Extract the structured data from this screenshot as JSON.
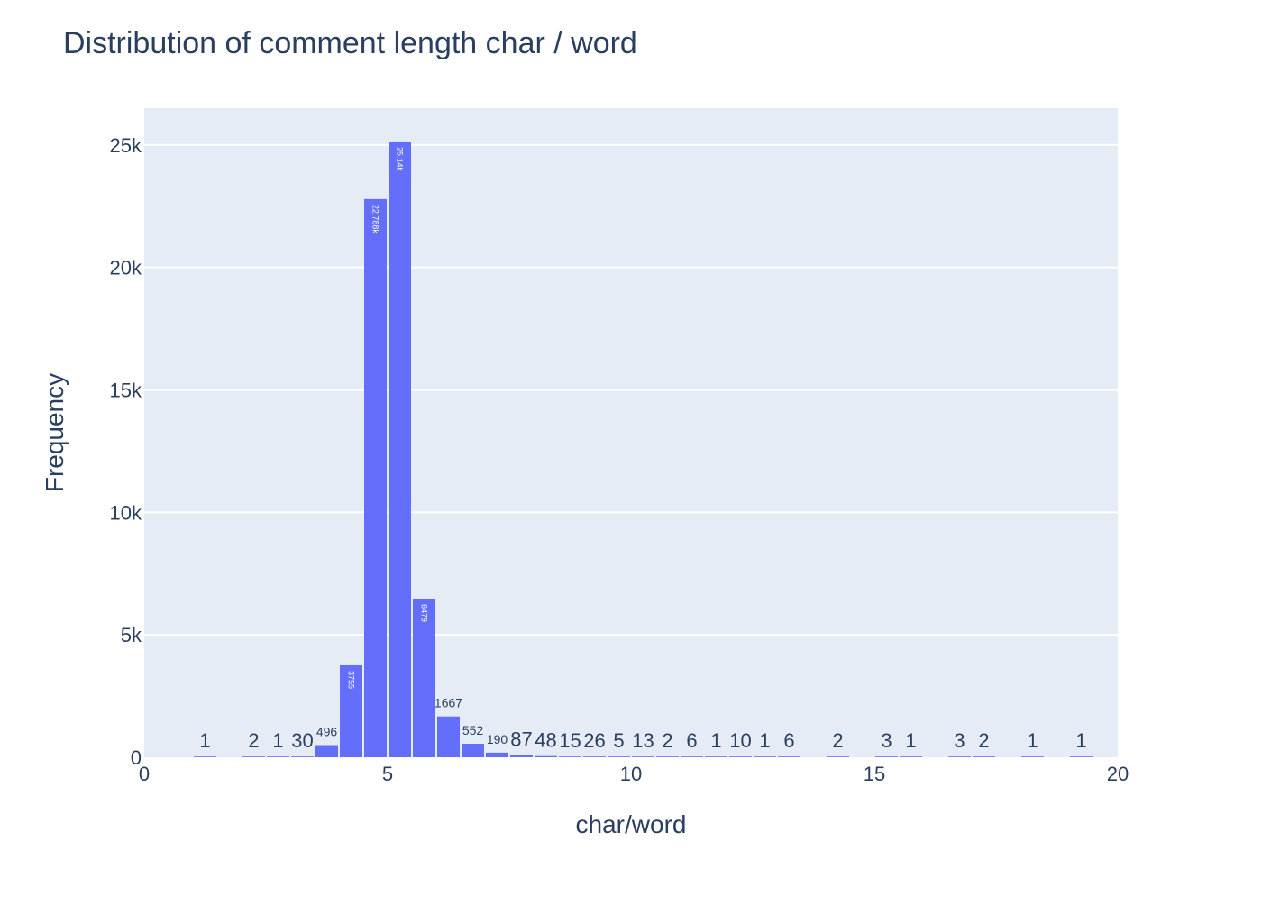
{
  "chart_data": {
    "type": "bar",
    "title": "Distribution of comment length char / word",
    "xlabel": "char/word",
    "ylabel": "Frequency",
    "xlim": [
      0,
      20
    ],
    "ylim": [
      0,
      26500
    ],
    "x_ticks": [
      {
        "value": 0,
        "label": "0"
      },
      {
        "value": 5,
        "label": "5"
      },
      {
        "value": 10,
        "label": "10"
      },
      {
        "value": 15,
        "label": "15"
      },
      {
        "value": 20,
        "label": "20"
      }
    ],
    "y_ticks": [
      {
        "value": 0,
        "label": "0"
      },
      {
        "value": 5000,
        "label": "5k"
      },
      {
        "value": 10000,
        "label": "10k"
      },
      {
        "value": 15000,
        "label": "15k"
      },
      {
        "value": 20000,
        "label": "20k"
      },
      {
        "value": 25000,
        "label": "25k"
      }
    ],
    "bin_width": 0.5,
    "grid": true,
    "bar_color": "#636efa",
    "plot_bg": "#e5ecf6",
    "grid_color": "#ffffff",
    "text_color": "#2a3f5f",
    "bins": [
      {
        "start": 1.0,
        "value": 1,
        "label": "1"
      },
      {
        "start": 2.0,
        "value": 2,
        "label": "2"
      },
      {
        "start": 2.5,
        "value": 1,
        "label": "1"
      },
      {
        "start": 3.0,
        "value": 30,
        "label": "30"
      },
      {
        "start": 3.5,
        "value": 496,
        "label": "496"
      },
      {
        "start": 4.0,
        "value": 3755,
        "label": "3755"
      },
      {
        "start": 4.5,
        "value": 22788,
        "label": "22.788k"
      },
      {
        "start": 5.0,
        "value": 25140,
        "label": "25.14k"
      },
      {
        "start": 5.5,
        "value": 6479,
        "label": "6479"
      },
      {
        "start": 6.0,
        "value": 1667,
        "label": "1667"
      },
      {
        "start": 6.5,
        "value": 552,
        "label": "552"
      },
      {
        "start": 7.0,
        "value": 190,
        "label": "190"
      },
      {
        "start": 7.5,
        "value": 87,
        "label": "87"
      },
      {
        "start": 8.0,
        "value": 48,
        "label": "48"
      },
      {
        "start": 8.5,
        "value": 15,
        "label": "15"
      },
      {
        "start": 9.0,
        "value": 26,
        "label": "26"
      },
      {
        "start": 9.5,
        "value": 5,
        "label": "5"
      },
      {
        "start": 10.0,
        "value": 13,
        "label": "13"
      },
      {
        "start": 10.5,
        "value": 2,
        "label": "2"
      },
      {
        "start": 11.0,
        "value": 6,
        "label": "6"
      },
      {
        "start": 11.5,
        "value": 1,
        "label": "1"
      },
      {
        "start": 12.0,
        "value": 10,
        "label": "10"
      },
      {
        "start": 12.5,
        "value": 1,
        "label": "1"
      },
      {
        "start": 13.0,
        "value": 6,
        "label": "6"
      },
      {
        "start": 14.0,
        "value": 2,
        "label": "2"
      },
      {
        "start": 15.0,
        "value": 3,
        "label": "3"
      },
      {
        "start": 15.5,
        "value": 1,
        "label": "1"
      },
      {
        "start": 16.5,
        "value": 3,
        "label": "3"
      },
      {
        "start": 17.0,
        "value": 2,
        "label": "2"
      },
      {
        "start": 18.0,
        "value": 1,
        "label": "1"
      },
      {
        "start": 19.0,
        "value": 1,
        "label": "1"
      }
    ]
  }
}
